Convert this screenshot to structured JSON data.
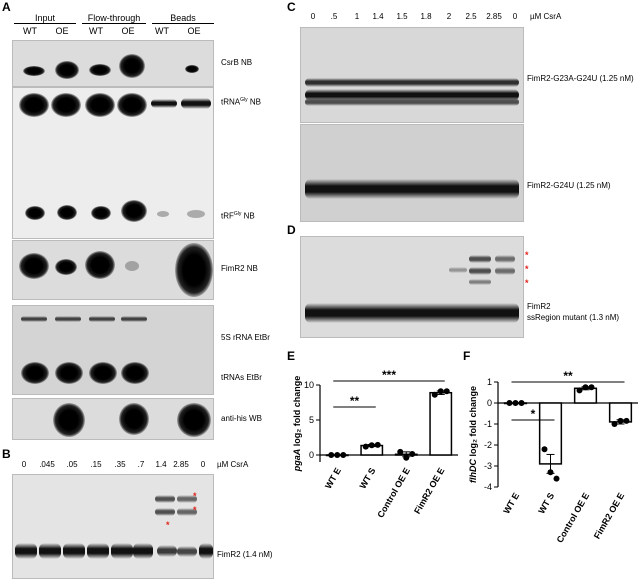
{
  "panel_A": {
    "letter": "A",
    "groups": [
      "Input",
      "Flow-through",
      "Beads"
    ],
    "lanes": [
      "WT",
      "OE",
      "WT",
      "OE",
      "WT",
      "OE"
    ],
    "blot_labels": [
      "CsrB NB",
      "tRNA",
      "Gly",
      " NB",
      "tRF",
      "Gly",
      " NB",
      "FimR2 NB",
      "5S rRNA EtBr",
      "tRNAs EtBr",
      "anti-his WB"
    ]
  },
  "panel_B": {
    "letter": "B",
    "concentrations": [
      "0",
      ".045",
      ".05",
      ".15",
      ".35",
      ".7",
      "1.4",
      "2.85",
      "0"
    ],
    "unit": "µM CsrA",
    "band_label": "FimR2 (1.4 nM)",
    "star": "*"
  },
  "panel_C": {
    "letter": "C",
    "concentrations": [
      "0",
      ".5",
      "1",
      "1.4",
      "1.5",
      "1.8",
      "2",
      "2.5",
      "2.85",
      "0"
    ],
    "unit": "µM CsrA",
    "labels": [
      "FimR2-G23A-G24U (1.25 nM)",
      "FimR2-G24U (1.25 nM)"
    ]
  },
  "panel_D": {
    "letter": "D",
    "label_line1": "FimR2",
    "label_line2": "ssRegion mutant (1.3 nM)",
    "star": "*"
  },
  "chart_data": [
    {
      "panel": "E",
      "type": "bar",
      "categories": [
        "WT E",
        "WT S",
        "Control OE E",
        "FimR2 OE E"
      ],
      "values": [
        0,
        1.35,
        0.1,
        8.9
      ],
      "points": [
        [
          0,
          0,
          0
        ],
        [
          1.2,
          1.4,
          1.45
        ],
        [
          0.45,
          -0.4,
          0.15
        ],
        [
          8.6,
          9.1,
          9.1
        ]
      ],
      "errors": [
        0,
        0.15,
        0.35,
        0.25
      ],
      "ylabel_italic": "pgaA",
      "ylabel": " log₂ fold change",
      "yticks": [
        "0",
        "5",
        "10"
      ],
      "ylim": [
        -1,
        10
      ],
      "significance": [
        {
          "from": 0,
          "to": 1,
          "label": "**"
        },
        {
          "from": 0,
          "to": 3,
          "label": "***"
        }
      ]
    },
    {
      "panel": "F",
      "type": "bar",
      "categories": [
        "WT E",
        "WT S",
        "Control OE E",
        "FimR2 OE E"
      ],
      "values": [
        0,
        -2.9,
        0.7,
        -0.9
      ],
      "points": [
        [
          0,
          0,
          0
        ],
        [
          -2.2,
          -3.3,
          -3.6
        ],
        [
          0.6,
          0.75,
          0.75
        ],
        [
          -1.0,
          -0.85,
          -0.85
        ]
      ],
      "errors": [
        0,
        0.45,
        0.07,
        0.1
      ],
      "ylabel_italic": "flhDC",
      "ylabel": " log₂ fold change",
      "yticks": [
        "1",
        "0",
        "-1",
        "-2",
        "-3",
        "-4"
      ],
      "ylim": [
        -4,
        1
      ],
      "significance": [
        {
          "from": 0,
          "to": 1,
          "label": "*"
        },
        {
          "from": 0,
          "to": 3,
          "label": "**"
        }
      ]
    }
  ]
}
